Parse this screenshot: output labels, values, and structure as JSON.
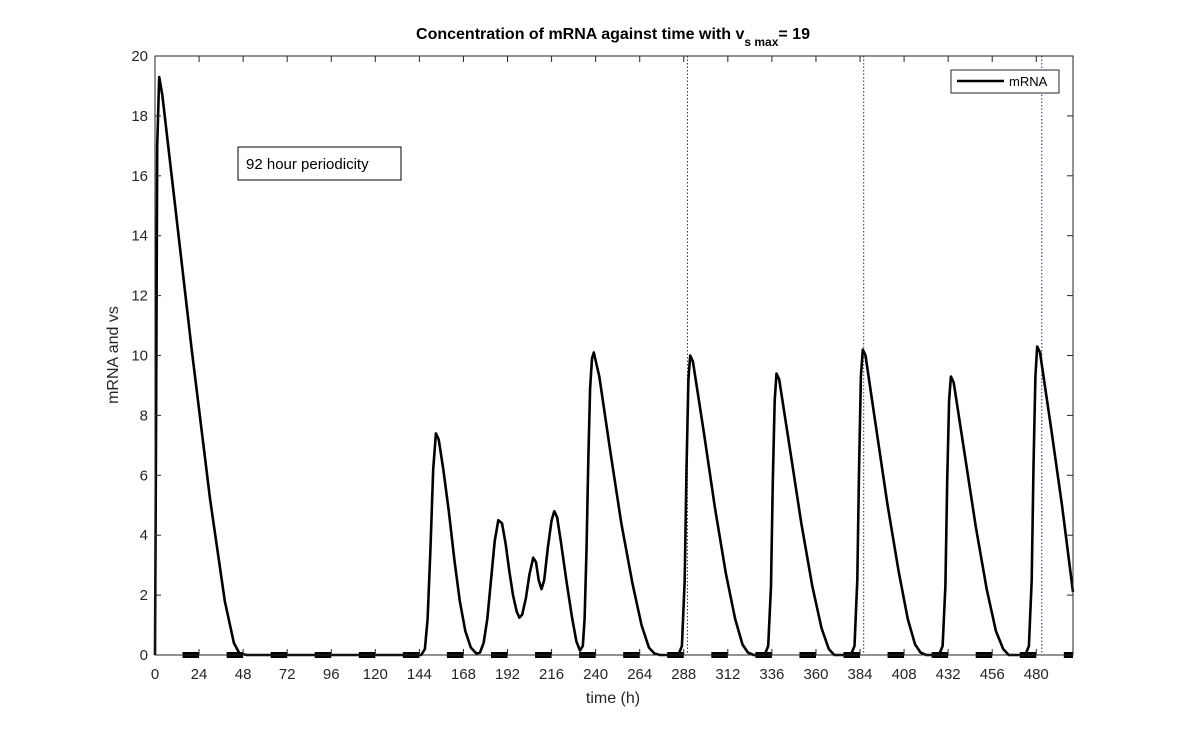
{
  "chart_data": {
    "type": "line",
    "title": {
      "prefix": "Concentration of mRNA against time with v",
      "subscript": "s max",
      "suffix": "= 19"
    },
    "xlabel": "time (h)",
    "ylabel": "mRNA and vs",
    "xlim": [
      0,
      500
    ],
    "ylim": [
      0,
      20
    ],
    "xticks": [
      0,
      24,
      48,
      72,
      96,
      120,
      144,
      168,
      192,
      216,
      240,
      264,
      288,
      312,
      336,
      360,
      384,
      408,
      432,
      456,
      480
    ],
    "yticks": [
      0,
      2,
      4,
      6,
      8,
      10,
      12,
      14,
      16,
      18,
      20
    ],
    "grid": false,
    "legend": {
      "placement": "top-right",
      "entries": [
        "mRNA"
      ]
    },
    "annotation": "92 hour periodicity",
    "vertical_lines": [
      290,
      386,
      483
    ],
    "light_dark_bars": [
      [
        15,
        24
      ],
      [
        39,
        48
      ],
      [
        63,
        72
      ],
      [
        87,
        96
      ],
      [
        111,
        120
      ],
      [
        135,
        144
      ],
      [
        159,
        168
      ],
      [
        183,
        192
      ],
      [
        207,
        216
      ],
      [
        231,
        240
      ],
      [
        255,
        264
      ],
      [
        279,
        288
      ],
      [
        303,
        312
      ],
      [
        327,
        336
      ],
      [
        351,
        360
      ],
      [
        375,
        384
      ],
      [
        399,
        408
      ],
      [
        423,
        432
      ],
      [
        447,
        456
      ],
      [
        471,
        480
      ],
      [
        495,
        500
      ]
    ],
    "series": [
      {
        "name": "mRNA",
        "points": [
          [
            0,
            0
          ],
          [
            0.6,
            8.0
          ],
          [
            1.2,
            17.0
          ],
          [
            2.3,
            19.3
          ],
          [
            4,
            18.7
          ],
          [
            10,
            15.5
          ],
          [
            20,
            10.2
          ],
          [
            30,
            5.2
          ],
          [
            38,
            1.8
          ],
          [
            43,
            0.4
          ],
          [
            46,
            0.05
          ],
          [
            50,
            0
          ],
          [
            145,
            0
          ],
          [
            147,
            0.2
          ],
          [
            148.5,
            1.2
          ],
          [
            150,
            3.5
          ],
          [
            151.5,
            6.2
          ],
          [
            153,
            7.4
          ],
          [
            154.5,
            7.2
          ],
          [
            157,
            6.2
          ],
          [
            160,
            4.8
          ],
          [
            163,
            3.2
          ],
          [
            166,
            1.8
          ],
          [
            169,
            0.8
          ],
          [
            172,
            0.25
          ],
          [
            175,
            0.05
          ],
          [
            177,
            0.08
          ],
          [
            179,
            0.4
          ],
          [
            181,
            1.2
          ],
          [
            183,
            2.5
          ],
          [
            185,
            3.8
          ],
          [
            187,
            4.5
          ],
          [
            189,
            4.4
          ],
          [
            191,
            3.7
          ],
          [
            193,
            2.8
          ],
          [
            195,
            2.0
          ],
          [
            197,
            1.45
          ],
          [
            198.5,
            1.25
          ],
          [
            200,
            1.35
          ],
          [
            202,
            1.9
          ],
          [
            204,
            2.7
          ],
          [
            206,
            3.25
          ],
          [
            207.5,
            3.1
          ],
          [
            209,
            2.5
          ],
          [
            210.5,
            2.2
          ],
          [
            212,
            2.5
          ],
          [
            214,
            3.6
          ],
          [
            216,
            4.5
          ],
          [
            217.5,
            4.8
          ],
          [
            219,
            4.6
          ],
          [
            221,
            3.8
          ],
          [
            224,
            2.5
          ],
          [
            227,
            1.3
          ],
          [
            229.5,
            0.45
          ],
          [
            231.5,
            0.15
          ],
          [
            233,
            0.3
          ],
          [
            234,
            1.2
          ],
          [
            235,
            3.5
          ],
          [
            236,
            6.5
          ],
          [
            237,
            8.9
          ],
          [
            238,
            9.9
          ],
          [
            239,
            10.1
          ],
          [
            242,
            9.3
          ],
          [
            248,
            6.8
          ],
          [
            254,
            4.4
          ],
          [
            260,
            2.4
          ],
          [
            265,
            1.0
          ],
          [
            269,
            0.25
          ],
          [
            272,
            0.05
          ],
          [
            275,
            0
          ],
          [
            285,
            0
          ],
          [
            287,
            0.3
          ],
          [
            288.5,
            2.5
          ],
          [
            289.5,
            6.2
          ],
          [
            290.5,
            9.2
          ],
          [
            291.5,
            10.0
          ],
          [
            293,
            9.8
          ],
          [
            299,
            7.4
          ],
          [
            305,
            4.9
          ],
          [
            311,
            2.7
          ],
          [
            316,
            1.2
          ],
          [
            320,
            0.35
          ],
          [
            323,
            0.08
          ],
          [
            326,
            0
          ],
          [
            332,
            0
          ],
          [
            334,
            0.3
          ],
          [
            335.5,
            2.3
          ],
          [
            336.5,
            5.8
          ],
          [
            337.5,
            8.5
          ],
          [
            338.5,
            9.4
          ],
          [
            340,
            9.2
          ],
          [
            346,
            6.8
          ],
          [
            352,
            4.4
          ],
          [
            358,
            2.3
          ],
          [
            363,
            0.9
          ],
          [
            367,
            0.2
          ],
          [
            370,
            0
          ],
          [
            379,
            0
          ],
          [
            381,
            0.3
          ],
          [
            382.5,
            2.5
          ],
          [
            383.5,
            6.3
          ],
          [
            384.5,
            9.3
          ],
          [
            385.5,
            10.2
          ],
          [
            387,
            10.0
          ],
          [
            393,
            7.5
          ],
          [
            399,
            5.0
          ],
          [
            405,
            2.8
          ],
          [
            410,
            1.2
          ],
          [
            414,
            0.35
          ],
          [
            417,
            0.08
          ],
          [
            420,
            0
          ],
          [
            427,
            0
          ],
          [
            429,
            0.3
          ],
          [
            430.5,
            2.3
          ],
          [
            431.5,
            5.8
          ],
          [
            432.5,
            8.5
          ],
          [
            433.5,
            9.3
          ],
          [
            435,
            9.1
          ],
          [
            441,
            6.7
          ],
          [
            447,
            4.3
          ],
          [
            453,
            2.2
          ],
          [
            458,
            0.8
          ],
          [
            462,
            0.2
          ],
          [
            465,
            0
          ],
          [
            474,
            0
          ],
          [
            476,
            0.3
          ],
          [
            477.5,
            2.5
          ],
          [
            478.5,
            6.3
          ],
          [
            479.5,
            9.3
          ],
          [
            480.5,
            10.3
          ],
          [
            482,
            10.1
          ],
          [
            488,
            7.6
          ],
          [
            494,
            5.0
          ],
          [
            500,
            2.1
          ]
        ]
      }
    ]
  }
}
